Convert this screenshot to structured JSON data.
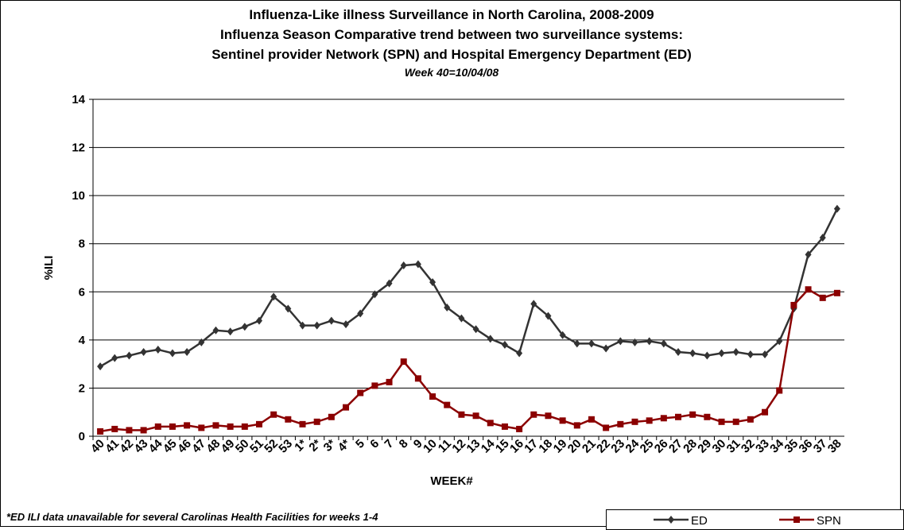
{
  "chart_data": {
    "type": "line",
    "title_lines": [
      "Influenza-Like illness Surveillance in North Carolina, 2008-2009",
      "Influenza Season Comparative trend between two surveillance systems:",
      "Sentinel provider Network (SPN) and Hospital Emergency Department (ED)"
    ],
    "subtitle": "Week 40=10/04/08",
    "x_label": "WEEK#",
    "y_label": "%ILI",
    "annotation": "*ED ILI data unavailable for several Carolinas Health Facilities for weeks 1-4",
    "categories": [
      "40",
      "41",
      "42",
      "43",
      "44",
      "45",
      "46",
      "47",
      "48",
      "49",
      "50",
      "51",
      "52",
      "53",
      "1*",
      "2*",
      "3*",
      "4*",
      "5",
      "6",
      "7",
      "8",
      "9",
      "10",
      "11",
      "12",
      "13",
      "14",
      "15",
      "16",
      "17",
      "18",
      "19",
      "20",
      "21",
      "22",
      "23",
      "24",
      "25",
      "26",
      "27",
      "28",
      "29",
      "30",
      "31",
      "32",
      "33",
      "34",
      "35",
      "36",
      "37",
      "38"
    ],
    "series": [
      {
        "name": "ED",
        "color": "#333333",
        "marker": "diamond",
        "values": [
          2.9,
          3.25,
          3.35,
          3.5,
          3.6,
          3.45,
          3.5,
          3.9,
          4.4,
          4.35,
          4.55,
          4.8,
          5.8,
          5.3,
          4.6,
          4.6,
          4.8,
          4.65,
          5.1,
          5.9,
          6.35,
          7.1,
          7.15,
          6.4,
          5.35,
          4.9,
          4.45,
          4.05,
          3.8,
          3.45,
          5.5,
          5.0,
          4.2,
          3.85,
          3.85,
          3.65,
          3.95,
          3.9,
          3.95,
          3.85,
          3.5,
          3.45,
          3.35,
          3.45,
          3.5,
          3.4,
          3.4,
          3.95,
          5.3,
          7.55,
          8.25,
          9.45
        ]
      },
      {
        "name": "SPN",
        "color": "#8b0000",
        "marker": "square",
        "values": [
          0.2,
          0.3,
          0.25,
          0.25,
          0.4,
          0.4,
          0.45,
          0.35,
          0.45,
          0.4,
          0.4,
          0.5,
          0.9,
          0.7,
          0.5,
          0.6,
          0.8,
          1.2,
          1.8,
          2.1,
          2.25,
          3.1,
          2.4,
          1.65,
          1.3,
          0.9,
          0.85,
          0.55,
          0.4,
          0.3,
          0.9,
          0.85,
          0.65,
          0.45,
          0.7,
          0.35,
          0.5,
          0.6,
          0.65,
          0.75,
          0.8,
          0.9,
          0.8,
          0.6,
          0.6,
          0.7,
          1.0,
          1.9,
          5.45,
          6.1,
          5.75,
          5.95
        ]
      }
    ],
    "ylim": [
      0,
      14
    ],
    "yticks": [
      0,
      2,
      4,
      6,
      8,
      10,
      12,
      14
    ],
    "grid": true,
    "legend": "bottom-right"
  }
}
